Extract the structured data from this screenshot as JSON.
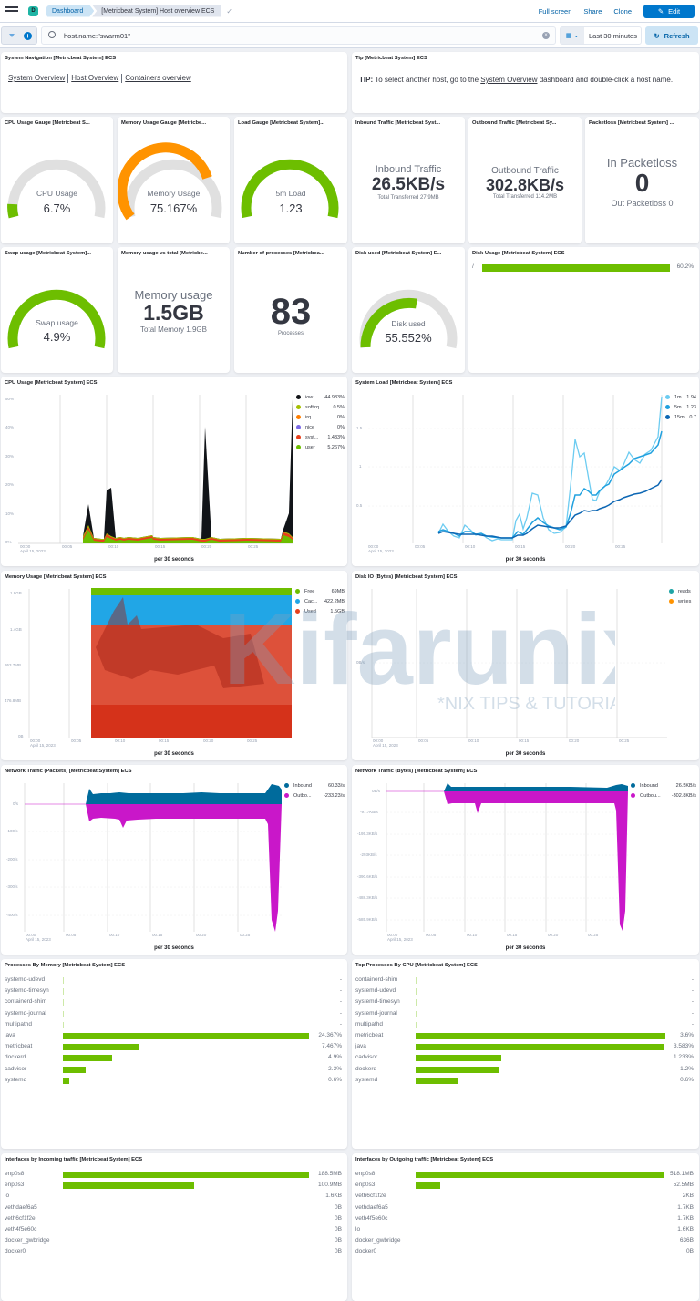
{
  "header": {
    "space_initial": "D",
    "breadcrumbs": [
      "Dashboard",
      "[Metricbeat System] Host overview ECS"
    ],
    "links": [
      "Full screen",
      "Share",
      "Clone"
    ],
    "edit_label": "Edit"
  },
  "query": {
    "value": "host.name:\"swarm01\"",
    "time_range": "Last 30 minutes",
    "refresh_label": "Refresh"
  },
  "nav_panel": {
    "title": "System Navigation [Metricbeat System] ECS",
    "links": [
      "System Overview",
      "Host Overview",
      "Containers overview"
    ]
  },
  "tip_panel": {
    "title": "Tip [Metricbeat System] ECS",
    "bold": "TIP:",
    "text1": " To select another host, go to the ",
    "link": "System Overview",
    "text2": " dashboard and double-click a host name."
  },
  "gauges": {
    "cpu": {
      "title": "CPU Usage Gauge [Metricbeat S...",
      "label": "CPU Usage",
      "value": "6.7%",
      "pct": 6.7,
      "color": "#6dbe00"
    },
    "memory": {
      "title": "Memory Usage Gauge [Metricbe...",
      "label": "Memory Usage",
      "value": "75.167%",
      "pct": 75.167,
      "color": "#ff9300"
    },
    "load": {
      "title": "Load Gauge [Metricbeat System]...",
      "label": "5m Load",
      "value": "1.23",
      "pct": 100,
      "color": "#6dbe00"
    },
    "swap": {
      "title": "Swap usage [Metricbeat System]...",
      "label": "Swap usage",
      "value": "4.9%",
      "pct": 100,
      "color": "#6dbe00"
    },
    "disk": {
      "title": "Disk used [Metricbeat System] E...",
      "label": "Disk used",
      "value": "55.552%",
      "pct": 55.552,
      "color": "#6dbe00"
    }
  },
  "metrics": {
    "inbound": {
      "title": "Inbound Traffic [Metricbeat Syst...",
      "label": "Inbound Traffic",
      "value": "26.5KB/s",
      "sub": "Total Transferred 27.9MB"
    },
    "outbound": {
      "title": "Outbound Traffic [Metricbeat Sy...",
      "label": "Outbound Traffic",
      "value": "302.8KB/s",
      "sub": "Total Transferred 114.2MB"
    },
    "packetloss": {
      "title": "Packetloss [Metricbeat System] ...",
      "label": "In Packetloss",
      "value": "0",
      "sub": "Out Packetloss 0"
    },
    "memory_total": {
      "title": "Memory usage vs total [Metricbe...",
      "label": "Memory usage",
      "value": "1.5GB",
      "sub": "Total Memory 1.9GB"
    },
    "processes": {
      "title": "Number of processes [Metricbea...",
      "value": "83",
      "sub": "Processes"
    }
  },
  "disk_usage": {
    "title": "Disk Usage [Metricbeat System] ECS",
    "rows": [
      {
        "label": "/",
        "value": "60.2%",
        "pct": 100
      }
    ]
  },
  "x_ticks": [
    "00:00",
    "00:05",
    "00:10",
    "00:15",
    "00:20",
    "00:25"
  ],
  "x_date": "April 15, 2023",
  "per_label": "per 30 seconds",
  "cpu_chart": {
    "title": "CPU Usage [Metricbeat System] ECS",
    "y_ticks": [
      "50%",
      "40%",
      "30%",
      "20%",
      "10%",
      "0%"
    ],
    "legend": [
      {
        "name": "iow...",
        "value": "44.933%",
        "color": "#111418"
      },
      {
        "name": "softirq",
        "value": "0.5%",
        "color": "#a5bf00"
      },
      {
        "name": "irq",
        "value": "0%",
        "color": "#ff7e00"
      },
      {
        "name": "nice",
        "value": "0%",
        "color": "#7b6ae6"
      },
      {
        "name": "syst...",
        "value": "1.433%",
        "color": "#e7401c"
      },
      {
        "name": "user",
        "value": "5.267%",
        "color": "#6dbe00"
      }
    ]
  },
  "load_chart": {
    "title": "System Load [Metricbeat System] ECS",
    "y_ticks": [
      "1.5",
      "1",
      "0.5"
    ],
    "legend": [
      {
        "name": "1m",
        "value": "1.94",
        "color": "#6dccf1"
      },
      {
        "name": "5m",
        "value": "1.23",
        "color": "#21a1df"
      },
      {
        "name": "15m",
        "value": "0.7",
        "color": "#0d67b4"
      }
    ]
  },
  "memory_chart": {
    "title": "Memory Usage [Metricbeat System] ECS",
    "y_ticks": [
      "1.9GB",
      "1.4GB",
      "953.7MB",
      "476.8MB",
      "0B"
    ],
    "legend": [
      {
        "name": "Free",
        "value": "69MB",
        "color": "#6dbe00"
      },
      {
        "name": "Cac...",
        "value": "422.2MB",
        "color": "#21a6e6"
      },
      {
        "name": "Used",
        "value": "1.5GB",
        "color": "#e7401c"
      }
    ]
  },
  "diskio_chart": {
    "title": "Disk IO (Bytes) [Metricbeat System] ECS",
    "y_ticks": [
      "0B/s"
    ],
    "legend": [
      {
        "name": "reads",
        "value": "",
        "color": "#1ea4a5"
      },
      {
        "name": "writes",
        "value": "",
        "color": "#ff9300"
      }
    ]
  },
  "netpkt_chart": {
    "title": "Network Traffic (Packets) [Metricbeat System] ECS",
    "y_ticks": [
      "0/s",
      "-100/s",
      "-200/s",
      "-300/s",
      "-400/s"
    ],
    "legend": [
      {
        "name": "Inbound",
        "value": "60.33/s",
        "color": "#006b9c"
      },
      {
        "name": "Outbo...",
        "value": "-233.23/s",
        "color": "#c917c9"
      }
    ]
  },
  "netbytes_chart": {
    "title": "Network Traffic (Bytes) [Metricbeat System] ECS",
    "y_ticks": [
      "0B/s",
      "-97.7KB/s",
      "-195.3KB/s",
      "-293KB/s",
      "-390.6KB/s",
      "-488.3KB/s",
      "-585.9KB/s"
    ],
    "legend": [
      {
        "name": "Inbound",
        "value": "26.5KB/s",
        "color": "#006b9c"
      },
      {
        "name": "Outbou...",
        "value": "-302.8KB/s",
        "color": "#c917c9"
      }
    ]
  },
  "proc_memory": {
    "title": "Processes By Memory [Metricbeat System] ECS",
    "rows": [
      {
        "label": "systemd-udevd",
        "value": "-",
        "pct": 0
      },
      {
        "label": "systemd-timesyn",
        "value": "-",
        "pct": 0
      },
      {
        "label": "containerd-shim",
        "value": "-",
        "pct": 0
      },
      {
        "label": "systemd-journal",
        "value": "-",
        "pct": 0
      },
      {
        "label": "multipathd",
        "value": "-",
        "pct": 0
      },
      {
        "label": "java",
        "value": "24.367%",
        "pct": 100
      },
      {
        "label": "metricbeat",
        "value": "7.467%",
        "pct": 30.6
      },
      {
        "label": "dockerd",
        "value": "4.9%",
        "pct": 20.1
      },
      {
        "label": "cadvisor",
        "value": "2.3%",
        "pct": 9.4
      },
      {
        "label": "systemd",
        "value": "0.6%",
        "pct": 2.5
      }
    ]
  },
  "proc_cpu": {
    "title": "Top Processes By CPU [Metricbeat System] ECS",
    "rows": [
      {
        "label": "containerd-shim",
        "value": "-",
        "pct": 0
      },
      {
        "label": "systemd-udevd",
        "value": "-",
        "pct": 0
      },
      {
        "label": "systemd-timesyn",
        "value": "-",
        "pct": 0
      },
      {
        "label": "systemd-journal",
        "value": "-",
        "pct": 0
      },
      {
        "label": "multipathd",
        "value": "-",
        "pct": 0
      },
      {
        "label": "metricbeat",
        "value": "3.6%",
        "pct": 100
      },
      {
        "label": "java",
        "value": "3.583%",
        "pct": 99.5
      },
      {
        "label": "cadvisor",
        "value": "1.233%",
        "pct": 34.3
      },
      {
        "label": "dockerd",
        "value": "1.2%",
        "pct": 33.3
      },
      {
        "label": "systemd",
        "value": "0.6%",
        "pct": 16.7
      }
    ]
  },
  "iface_in": {
    "title": "Interfaces by Incoming traffic [Metricbeat System] ECS",
    "rows": [
      {
        "label": "enp0s8",
        "value": "188.5MB",
        "pct": 100
      },
      {
        "label": "enp0s3",
        "value": "100.9MB",
        "pct": 53.5
      },
      {
        "label": "lo",
        "value": "1.6KB",
        "pct": 0
      },
      {
        "label": "vethdaef6a5",
        "value": "0B",
        "pct": 0
      },
      {
        "label": "veth6cf1f2e",
        "value": "0B",
        "pct": 0
      },
      {
        "label": "veth4f5e60c",
        "value": "0B",
        "pct": 0
      },
      {
        "label": "docker_gwbridge",
        "value": "0B",
        "pct": 0
      },
      {
        "label": "docker0",
        "value": "0B",
        "pct": 0
      }
    ]
  },
  "iface_out": {
    "title": "Interfaces by Outgoing traffic [Metricbeat System] ECS",
    "rows": [
      {
        "label": "enp0s8",
        "value": "518.1MB",
        "pct": 100
      },
      {
        "label": "enp0s3",
        "value": "52.5MB",
        "pct": 10.1
      },
      {
        "label": "veth6cf1f2e",
        "value": "2KB",
        "pct": 0
      },
      {
        "label": "vethdaef6a5",
        "value": "1.7KB",
        "pct": 0
      },
      {
        "label": "veth4f5e60c",
        "value": "1.7KB",
        "pct": 0
      },
      {
        "label": "lo",
        "value": "1.6KB",
        "pct": 0
      },
      {
        "label": "docker_gwbridge",
        "value": "636B",
        "pct": 0
      },
      {
        "label": "docker0",
        "value": "0B",
        "pct": 0
      }
    ]
  },
  "watermark": {
    "text": "Kifarunix",
    "sub": "*NIX TIPS & TUTORIALS"
  }
}
